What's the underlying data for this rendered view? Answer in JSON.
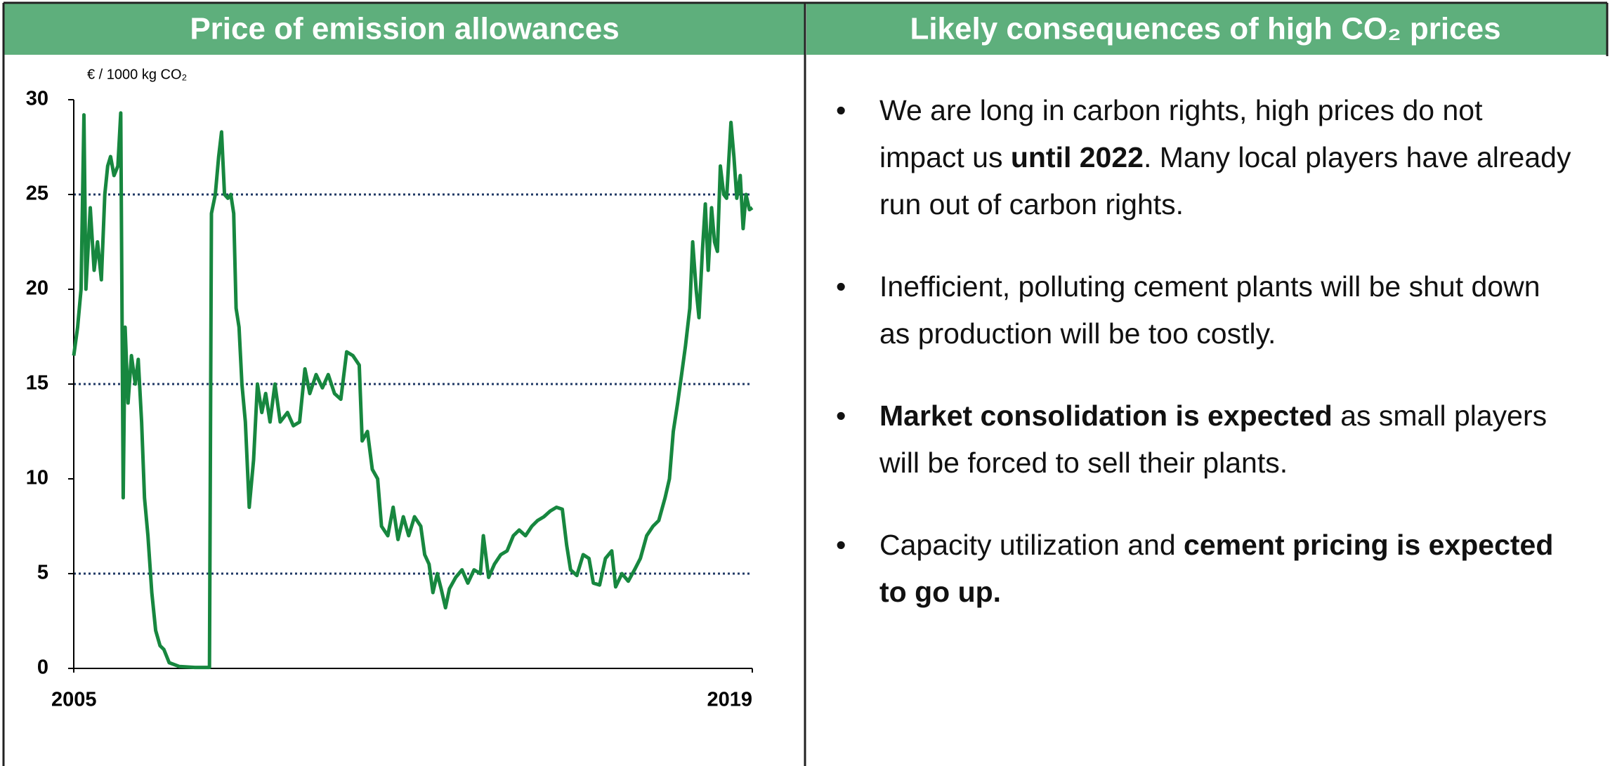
{
  "left_header": "Price of emission allowances",
  "right_header": "Likely consequences of high CO₂ prices",
  "bullets": [
    [
      {
        "text": "We are long in carbon rights, high prices do not impact us ",
        "bold": false
      },
      {
        "text": "until 2022",
        "bold": true
      },
      {
        "text": ". Many local players have already run out of carbon rights.",
        "bold": false
      }
    ],
    [
      {
        "text": "Inefficient, polluting cement plants will be shut down as production will be too costly.",
        "bold": false
      }
    ],
    [
      {
        "text": "Market consolidation is expected",
        "bold": true
      },
      {
        "text": " as small players will be forced to sell their plants.",
        "bold": false
      }
    ],
    [
      {
        "text": "Capacity utilization and ",
        "bold": false
      },
      {
        "text": "cement pricing is expected to go up.",
        "bold": true
      }
    ]
  ],
  "bullet_symbol": "•",
  "chart_data": {
    "type": "line",
    "y_label": "€ / 1000 kg CO₂",
    "color": "#17873f",
    "xlim": [
      2005,
      2019
    ],
    "xticks": [
      2005,
      2019
    ],
    "ylim": [
      0,
      30
    ],
    "yticks": [
      0,
      5,
      10,
      15,
      20,
      25,
      30
    ],
    "grid_lines": [
      5,
      15,
      25
    ],
    "grid_color": "#1f3864",
    "x": [
      2005.0,
      2005.08,
      2005.15,
      2005.21,
      2005.25,
      2005.34,
      2005.42,
      2005.49,
      2005.57,
      2005.64,
      2005.7,
      2005.76,
      2005.83,
      2005.91,
      2005.97,
      2006.02,
      2006.06,
      2006.12,
      2006.19,
      2006.27,
      2006.33,
      2006.4,
      2006.46,
      2006.53,
      2006.61,
      2006.69,
      2006.78,
      2006.86,
      2006.97,
      2007.18,
      2007.5,
      2007.8,
      2007.84,
      2007.92,
      2007.99,
      2008.05,
      2008.11,
      2008.18,
      2008.24,
      2008.3,
      2008.35,
      2008.41,
      2008.47,
      2008.54,
      2008.62,
      2008.71,
      2008.79,
      2008.88,
      2008.96,
      2009.05,
      2009.15,
      2009.26,
      2009.41,
      2009.53,
      2009.66,
      2009.77,
      2009.87,
      2010.0,
      2010.13,
      2010.25,
      2010.38,
      2010.51,
      2010.63,
      2010.76,
      2010.89,
      2010.95,
      2011.06,
      2011.16,
      2011.27,
      2011.35,
      2011.48,
      2011.59,
      2011.69,
      2011.8,
      2011.91,
      2012.03,
      2012.16,
      2012.24,
      2012.33,
      2012.41,
      2012.5,
      2012.58,
      2012.67,
      2012.75,
      2012.88,
      2013.01,
      2013.13,
      2013.26,
      2013.39,
      2013.45,
      2013.56,
      2013.68,
      2013.81,
      2013.94,
      2014.07,
      2014.19,
      2014.32,
      2014.45,
      2014.57,
      2014.7,
      2014.83,
      2014.96,
      2015.08,
      2015.17,
      2015.25,
      2015.38,
      2015.51,
      2015.63,
      2015.72,
      2015.85,
      2015.97,
      2016.1,
      2016.18,
      2016.31,
      2016.44,
      2016.57,
      2016.69,
      2016.82,
      2016.95,
      2017.07,
      2017.2,
      2017.29,
      2017.37,
      2017.46,
      2017.54,
      2017.62,
      2017.71,
      2017.77,
      2017.84,
      2017.9,
      2017.97,
      2018.03,
      2018.09,
      2018.16,
      2018.22,
      2018.28,
      2018.34,
      2018.41,
      2018.47,
      2018.56,
      2018.62,
      2018.68,
      2018.75,
      2018.81,
      2018.87,
      2018.94,
      2019.0
    ],
    "values": [
      16.5,
      18,
      20,
      29.2,
      20,
      24.3,
      21,
      22.5,
      20.5,
      25,
      26.5,
      27,
      26,
      26.5,
      29.3,
      9,
      18,
      14,
      16.5,
      15,
      16.3,
      13,
      9,
      7,
      4,
      2,
      1.2,
      1.0,
      0.3,
      0.1,
      0.05,
      0.05,
      24,
      25,
      27,
      28.3,
      25,
      24.8,
      25,
      24,
      19,
      18,
      15,
      13,
      8.5,
      11,
      15,
      13.5,
      14.5,
      13,
      15,
      13,
      13.5,
      12.8,
      13,
      15.8,
      14.5,
      15.5,
      14.8,
      15.5,
      14.5,
      14.2,
      16.7,
      16.5,
      16,
      12,
      12.5,
      10.5,
      10,
      7.5,
      7,
      8.5,
      6.8,
      8,
      7,
      8,
      7.5,
      6,
      5.5,
      4,
      5,
      4.2,
      3.2,
      4.2,
      4.8,
      5.2,
      4.5,
      5.2,
      5.0,
      7,
      4.8,
      5.5,
      6,
      6.2,
      7,
      7.3,
      7.0,
      7.5,
      7.8,
      8,
      8.3,
      8.5,
      8.4,
      6.5,
      5.2,
      4.9,
      6,
      5.8,
      4.5,
      4.4,
      5.8,
      6.2,
      4.3,
      5.0,
      4.6,
      5.2,
      5.8,
      7,
      7.5,
      7.8,
      9,
      10,
      12.5,
      14,
      15.5,
      17,
      19,
      22.5,
      20,
      18.5,
      22,
      24.5,
      21,
      24.3,
      22.5,
      22,
      26.5,
      25,
      24.8,
      28.8,
      27,
      24.8,
      26,
      23.2,
      25,
      24.2,
      24.3
    ]
  }
}
